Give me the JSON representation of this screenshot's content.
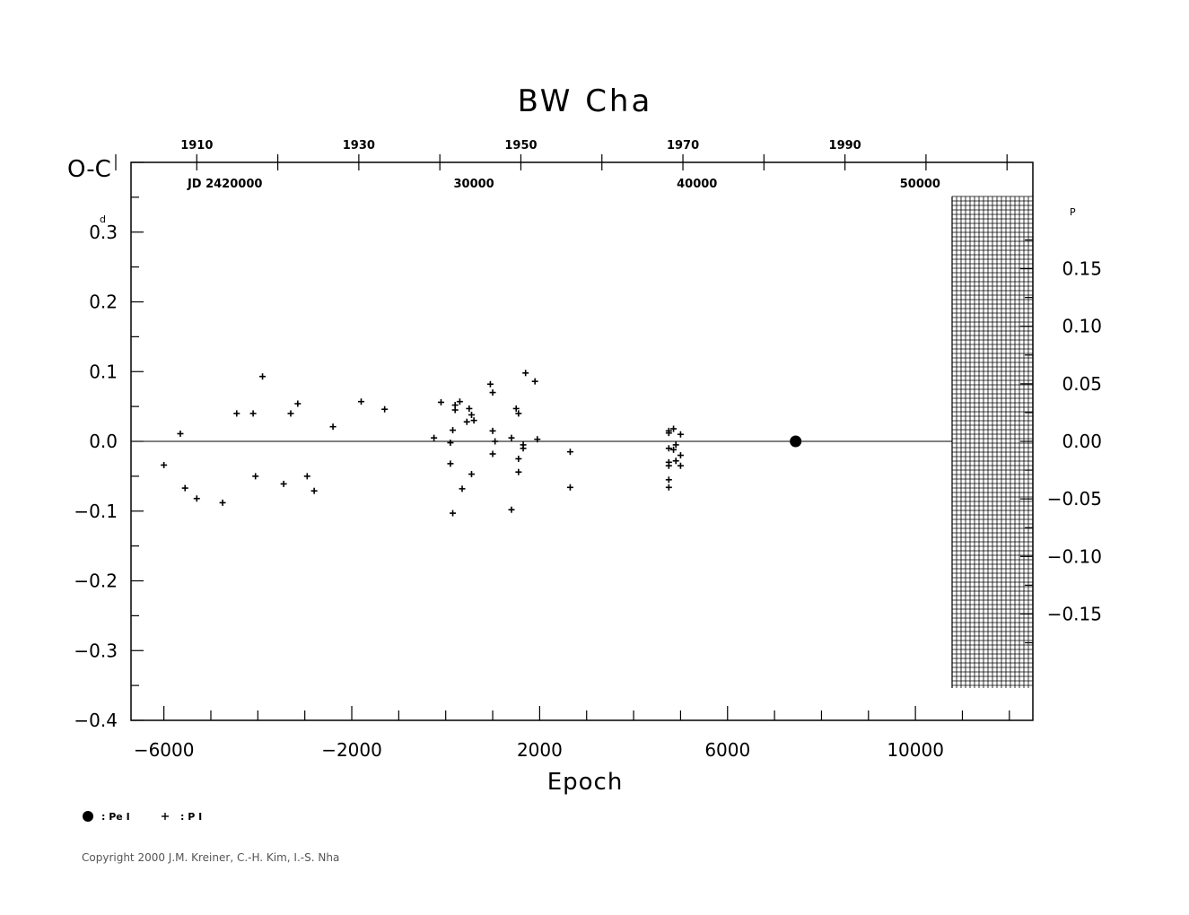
{
  "chart_data": {
    "type": "scatter",
    "title": "BW  Cha",
    "ylabel": "O-C",
    "ylabel_unit": "d",
    "xlabel": "Epoch",
    "xlim": [
      -6700,
      12500
    ],
    "ylim": [
      -0.4,
      0.4
    ],
    "x_ticks": [
      -6000,
      -2000,
      2000,
      6000,
      10000
    ],
    "x_tick_labels": [
      "−6000",
      "−2000",
      "2000",
      "6000",
      "10000"
    ],
    "y_ticks": [
      0.3,
      0.2,
      0.1,
      0.0,
      -0.1,
      -0.2,
      -0.3,
      -0.4
    ],
    "y_tick_labels": [
      "0.3",
      "0.2",
      "0.1",
      "0.0",
      "−0.1",
      "−0.2",
      "−0.3",
      "−0.4"
    ],
    "right_axis": {
      "unit": "P",
      "ticks": [
        0.15,
        0.1,
        0.05,
        0.0,
        -0.05,
        -0.1,
        -0.15
      ],
      "tick_labels": [
        "0.15",
        "0.10",
        "0.05",
        "0.00",
        "−0.05",
        "−0.10",
        "−0.15"
      ]
    },
    "top_axis_years": [
      {
        "label": "1910",
        "epoch": -5300
      },
      {
        "label": "1930",
        "epoch": -1850
      },
      {
        "label": "1950",
        "epoch": 1600
      },
      {
        "label": "1970",
        "epoch": 5050
      },
      {
        "label": "1990",
        "epoch": 8500
      }
    ],
    "top_axis_jd": [
      {
        "label": "JD  2420000",
        "epoch": -4700
      },
      {
        "label": "30000",
        "epoch": 600
      },
      {
        "label": "40000",
        "epoch": 5350
      },
      {
        "label": "50000",
        "epoch": 10100
      }
    ],
    "series": [
      {
        "name": "Pe I",
        "marker": "filled-circle",
        "points": [
          [
            7450,
            0.0
          ]
        ]
      },
      {
        "name": "P I",
        "marker": "plus",
        "points": [
          [
            -6000,
            -0.034
          ],
          [
            -5650,
            0.011
          ],
          [
            -5550,
            -0.067
          ],
          [
            -5300,
            -0.082
          ],
          [
            -4750,
            -0.088
          ],
          [
            -4450,
            0.04
          ],
          [
            -4100,
            0.04
          ],
          [
            -4050,
            -0.05
          ],
          [
            -3900,
            0.093
          ],
          [
            -3450,
            -0.061
          ],
          [
            -3300,
            0.04
          ],
          [
            -3150,
            0.054
          ],
          [
            -2950,
            -0.05
          ],
          [
            -2800,
            -0.071
          ],
          [
            -2400,
            0.021
          ],
          [
            -1800,
            0.057
          ],
          [
            -1300,
            0.046
          ],
          [
            -250,
            0.005
          ],
          [
            -100,
            0.056
          ],
          [
            100,
            -0.002
          ],
          [
            100,
            -0.032
          ],
          [
            150,
            -0.103
          ],
          [
            150,
            0.016
          ],
          [
            200,
            0.045
          ],
          [
            200,
            0.052
          ],
          [
            300,
            0.057
          ],
          [
            350,
            -0.068
          ],
          [
            450,
            0.028
          ],
          [
            500,
            0.047
          ],
          [
            550,
            0.038
          ],
          [
            600,
            0.03
          ],
          [
            550,
            -0.047
          ],
          [
            950,
            0.082
          ],
          [
            1000,
            0.07
          ],
          [
            1000,
            0.015
          ],
          [
            1000,
            -0.018
          ],
          [
            1050,
            0.0
          ],
          [
            1400,
            0.005
          ],
          [
            1400,
            -0.098
          ],
          [
            1500,
            0.047
          ],
          [
            1550,
            0.04
          ],
          [
            1550,
            -0.025
          ],
          [
            1550,
            -0.044
          ],
          [
            1650,
            -0.01
          ],
          [
            1650,
            -0.005
          ],
          [
            1700,
            0.098
          ],
          [
            1900,
            0.086
          ],
          [
            1950,
            0.003
          ],
          [
            2650,
            -0.015
          ],
          [
            2650,
            -0.066
          ],
          [
            4750,
            0.015
          ],
          [
            4750,
            0.012
          ],
          [
            4750,
            -0.01
          ],
          [
            4750,
            -0.03
          ],
          [
            4750,
            -0.035
          ],
          [
            4750,
            -0.055
          ],
          [
            4750,
            -0.066
          ],
          [
            4850,
            0.018
          ],
          [
            4850,
            -0.012
          ],
          [
            4900,
            -0.005
          ],
          [
            4900,
            -0.028
          ],
          [
            5000,
            0.01
          ],
          [
            5000,
            -0.02
          ],
          [
            5000,
            -0.035
          ]
        ]
      }
    ],
    "zero_line": true,
    "legend_placement": "bottom-left"
  },
  "copyright": "Copyright 2000 J.M. Kreiner, C.-H. Kim, I.-S. Nha"
}
